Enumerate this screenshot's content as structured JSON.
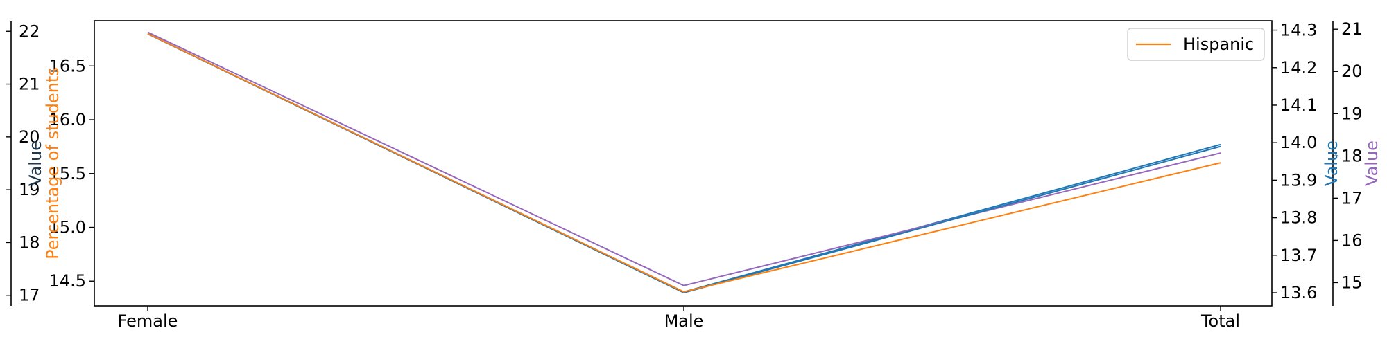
{
  "chart_data": {
    "type": "line",
    "categories": [
      "Female",
      "Male",
      "Total"
    ],
    "series": [
      {
        "name": "",
        "color": "#1f77b4",
        "axis": "left_inner",
        "values": [
          16.8,
          14.4,
          15.77
        ]
      },
      {
        "name": "",
        "color": "#9467bd",
        "axis": "right_outer",
        "values": [
          20.93,
          14.93,
          18.07
        ]
      },
      {
        "name": "",
        "color": "#1f77b4",
        "axis": "right_inner",
        "values": [
          14.29,
          13.6,
          13.99
        ]
      },
      {
        "name": "Hispanic",
        "color": "#ff7f0e",
        "axis": "left_inner",
        "values": [
          16.8,
          14.4,
          15.6
        ]
      }
    ],
    "axes": {
      "left_outer": {
        "label": "Value",
        "color": "#1f3a4f",
        "ylim": [
          16.8,
          22.2
        ],
        "ticks": [
          17,
          18,
          19,
          20,
          21,
          22
        ]
      },
      "left_inner": {
        "label": "Percentage of students",
        "color": "#ff7f0e",
        "ylim": [
          14.27,
          16.92
        ],
        "ticks": [
          14.5,
          15.0,
          15.5,
          16.0,
          16.5
        ],
        "tick_labels": [
          "14.5",
          "15.0",
          "15.5",
          "16.0",
          "16.5"
        ]
      },
      "right_inner": {
        "label": "Value",
        "color": "#1f77b4",
        "ylim": [
          13.565,
          14.325
        ],
        "ticks": [
          13.6,
          13.7,
          13.8,
          13.9,
          14.0,
          14.1,
          14.2,
          14.3
        ],
        "tick_labels": [
          "13.6",
          "13.7",
          "13.8",
          "13.9",
          "14.0",
          "14.1",
          "14.2",
          "14.3"
        ]
      },
      "right_outer": {
        "label": "Value",
        "color": "#9467bd",
        "ylim": [
          14.45,
          21.2
        ],
        "ticks": [
          15,
          16,
          17,
          18,
          19,
          20,
          21
        ]
      }
    },
    "legend": {
      "position": "top-right",
      "entries": [
        "Hispanic"
      ]
    },
    "grid": false
  }
}
